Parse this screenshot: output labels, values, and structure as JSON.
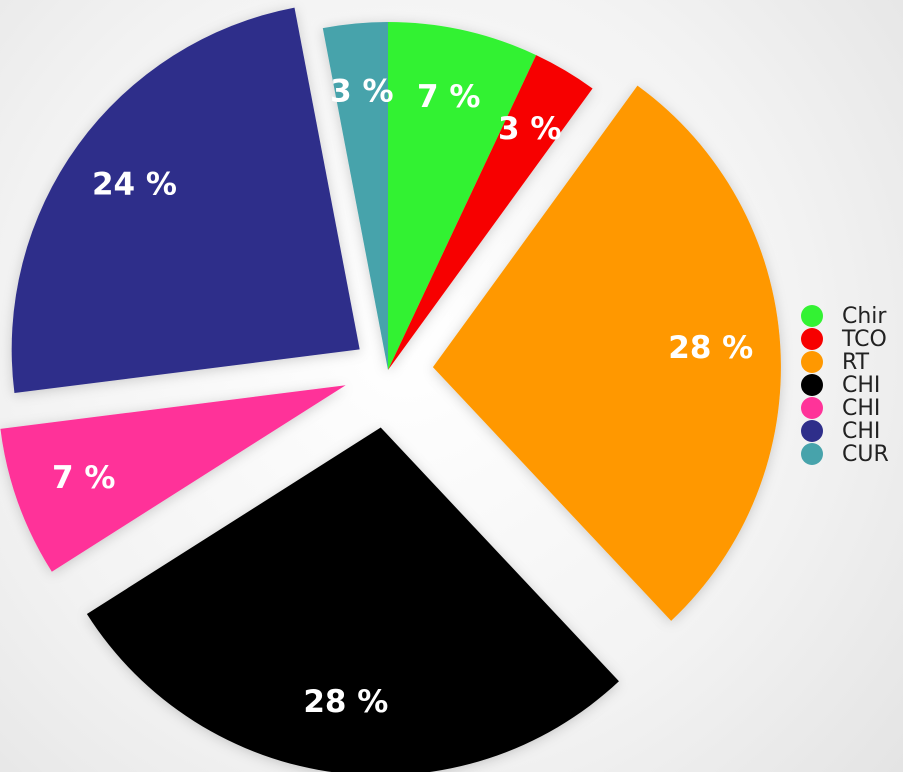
{
  "chart_data": {
    "type": "pie",
    "categories": [
      "Chir",
      "TCO",
      "RT",
      "CHI",
      "CHI",
      "CHI",
      "CUR"
    ],
    "values": [
      7,
      3,
      28,
      28,
      7,
      24,
      3
    ],
    "value_labels": [
      "7 %",
      "3 %",
      "28 %",
      "28 %",
      "7 %",
      "24 %",
      "3 %"
    ],
    "colors": [
      "#33f233",
      "#f70000",
      "#ff9800",
      "#000000",
      "#ff3399",
      "#2e2e8a",
      "#47a3ab"
    ],
    "legend": "right"
  }
}
